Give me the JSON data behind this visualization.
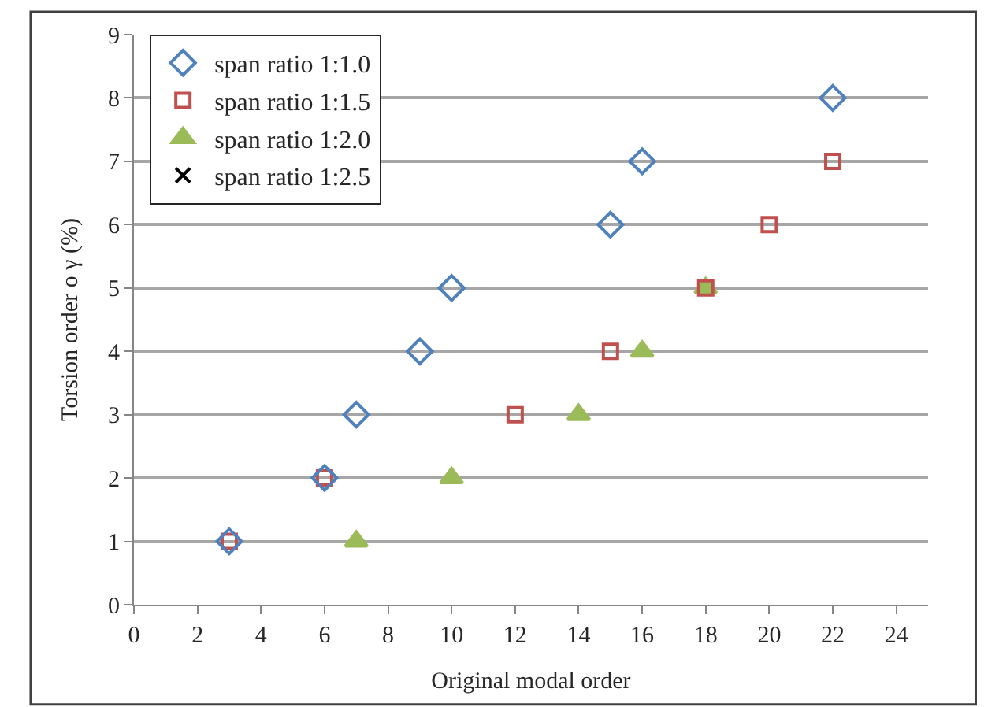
{
  "chart_data": {
    "type": "scatter",
    "xlabel": "Original modal order",
    "ylabel": "Torsion order o γ (%)",
    "xlim": [
      0,
      25
    ],
    "xticks": [
      0,
      2,
      4,
      6,
      8,
      10,
      12,
      14,
      16,
      18,
      20,
      22,
      24
    ],
    "ylim": [
      0,
      9
    ],
    "yticks": [
      0,
      1,
      2,
      3,
      4,
      5,
      6,
      7,
      8,
      9
    ],
    "grid": "y",
    "legend": "top left",
    "series": [
      {
        "name": "span ratio 1:1.0",
        "color": "#4f81bd",
        "marker": "diamond",
        "x": [
          3,
          6,
          7,
          9,
          10,
          15,
          16,
          22
        ],
        "values": [
          1,
          2,
          3,
          4,
          5,
          6,
          7,
          8
        ]
      },
      {
        "name": "span ratio 1:1.5",
        "color": "#c0504d",
        "marker": "square",
        "x": [
          3,
          6,
          12,
          15,
          18,
          20,
          22
        ],
        "values": [
          1,
          2,
          3,
          4,
          5,
          6,
          7
        ]
      },
      {
        "name": "span ratio 1:2.0",
        "color": "#9bbb59",
        "marker": "triangle",
        "x": [
          7,
          10,
          14,
          16,
          18
        ],
        "values": [
          1,
          2,
          3,
          4,
          5
        ]
      },
      {
        "name": "span ratio 1:2.5",
        "color": "#000000",
        "marker": "cross",
        "x": [
          null
        ],
        "values": [
          null
        ]
      }
    ]
  }
}
